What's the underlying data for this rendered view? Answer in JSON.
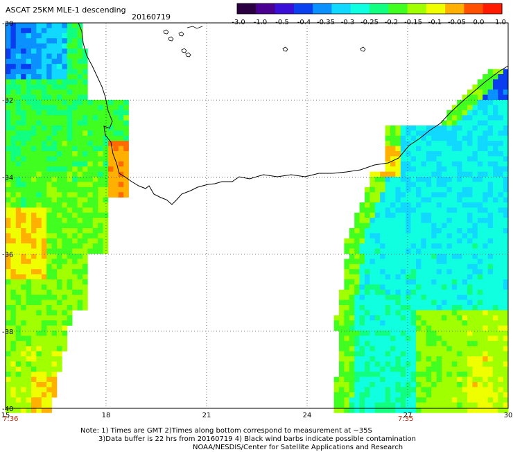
{
  "header": {
    "title": "ASCAT 25KM MLE-1 descending",
    "date": "20160719"
  },
  "colorbar": {
    "labels": [
      "-3.0",
      "-1.0",
      "-0.5",
      "-0.4",
      "-0.35",
      "-0.3",
      "-0.25",
      "-0.2",
      "-0.15",
      "-0.1",
      "-0.05",
      "0.0",
      "1.0"
    ],
    "colors": [
      "#2a0040",
      "#4a0090",
      "#3a10d8",
      "#0a40f0",
      "#0a90ff",
      "#10d8ff",
      "#10ffe0",
      "#10ff80",
      "#40ff20",
      "#a0ff00",
      "#f0ff00",
      "#ffb000",
      "#ff5000",
      "#ff1a00"
    ]
  },
  "map": {
    "lon_labels": [
      "15",
      "18",
      "21",
      "24",
      "27",
      "30"
    ],
    "lat_labels": [
      "-30",
      "-32",
      "-34",
      "-36",
      "-38",
      "-40"
    ],
    "lon_range": [
      15,
      30
    ],
    "lat_range": [
      -30,
      -40
    ],
    "time_left": "7:36",
    "time_right": "7:35"
  },
  "notes": [
    "Note: 1) Times are GMT 2)Times along bottom correspond to measurement at ~35S",
    "3)Data buffer is 22 hrs from 20160719 4) Black wind barbs indicate possible contamination",
    "NOAA/NESDIS/Center for Satellite Applications and Research"
  ]
}
